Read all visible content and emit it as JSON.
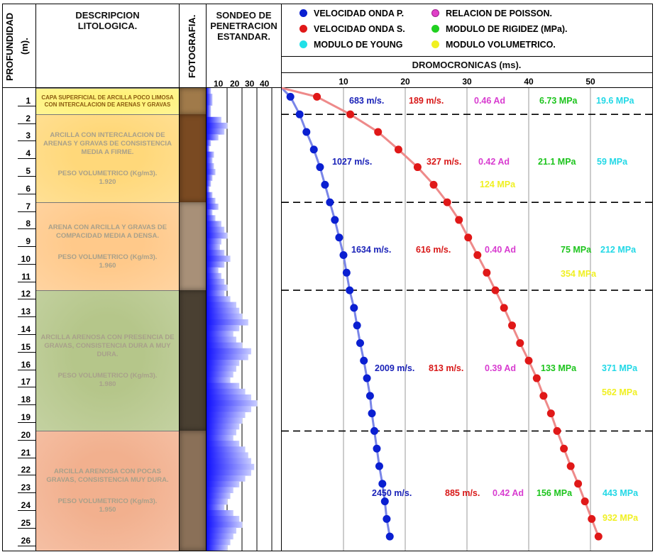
{
  "header": {
    "depth_title": "PROFUNDIDAD",
    "depth_unit": "(m).",
    "lith_title_1": "DESCRIPCION",
    "lith_title_2": "LITOLOGICA.",
    "photo_title": "FOTOGRAFIA.",
    "spt_title_1": "SONDEO DE",
    "spt_title_2": "PENETRACION",
    "spt_title_3": "ESTANDAR.",
    "spt_ticks": [
      "10",
      "20",
      "30",
      "40"
    ],
    "chart_title": "DROMOCRONICAS (ms)."
  },
  "legend": [
    {
      "label": "VELOCIDAD ONDA P.",
      "color": "#0a1fd1"
    },
    {
      "label": "RELACION DE POISSON.",
      "color": "#e040c8"
    },
    {
      "label": "VELOCIDAD ONDA S.",
      "color": "#e01818"
    },
    {
      "label": "MODULO DE RIGIDEZ (MPa).",
      "color": "#20d020"
    },
    {
      "label": "MODULO DE YOUNG",
      "color": "#20e0e8"
    },
    {
      "label": "MODULO VOLUMETRICO.",
      "color": "#f0f020"
    }
  ],
  "depths": [
    "1",
    "2",
    "3",
    "4",
    "5",
    "6",
    "7",
    "8",
    "9",
    "10",
    "11",
    "12",
    "13",
    "14",
    "15",
    "16",
    "17",
    "18",
    "19",
    "20",
    "21",
    "22",
    "23",
    "24",
    "25",
    "26"
  ],
  "layers": [
    {
      "text": "CAPA SUPERFICIAL DE ARCILLA POCO LIMOSA CON INTERCALACION DE ARENAS Y GRAVAS",
      "peso_label": "",
      "peso_value": "",
      "color": "#fff27a",
      "from": 0,
      "to": 1.5
    },
    {
      "text": "ARCILLA CON INTERCALACION DE ARENAS Y GRAVAS DE CONSISTENCIA MEDIA A FIRME.",
      "peso_label": "PESO VOLUMETRICO (Kg/m3).",
      "peso_value": "1.920",
      "color": "#ffd87a",
      "from": 1.5,
      "to": 6.5
    },
    {
      "text": "ARENA CON ARCILLA Y GRAVAS DE COMPACIDAD MEDIA A DENSA.",
      "peso_label": "PESO VOLUMETRICO (Kg/m3).",
      "peso_value": "1.960",
      "color": "#ffc98a",
      "from": 6.5,
      "to": 11.5
    },
    {
      "text": "ARCILLA ARENOSA CON PRESENCIA DE GRAVAS, CONSISTENCIA DURA A MUY DURA.",
      "peso_label": "PESO VOLUMETRICO (Kg/m3).",
      "peso_value": "1.980",
      "color": "#b5c68a",
      "from": 11.5,
      "to": 19.5
    },
    {
      "text": "ARCILLA ARENOSA CON POCAS GRAVAS, CONSISTENCIA MUY DURA.",
      "peso_label": "PESO VOLUMETRICO (Kg/m3).",
      "peso_value": "1.950",
      "color": "#f2b08e",
      "from": 19.5,
      "to": 26.3
    }
  ],
  "annotations": [
    {
      "vp": "683 m/s.",
      "vs": "189 m/s.",
      "poisson": "0.46 Ad",
      "rigidez": "6.73 MPa",
      "young": "19.6 MPa",
      "vol": ""
    },
    {
      "vp": "1027 m/s.",
      "vs": "327 m/s.",
      "poisson": "0.42 Ad",
      "rigidez": "21.1 MPa",
      "young": "59 MPa",
      "vol": "124 MPa"
    },
    {
      "vp": "1634 m/s.",
      "vs": "616 m/s.",
      "poisson": "0.40 Ad",
      "rigidez": "75 MPa",
      "young": "212 MPa",
      "vol": "354 MPa"
    },
    {
      "vp": "2009 m/s.",
      "vs": "813 m/s.",
      "poisson": "0.39 Ad",
      "rigidez": "133 MPa",
      "young": "371 MPa",
      "vol": "562 MPa"
    },
    {
      "vp": "2450 m/s.",
      "vs": "885 m/s.",
      "poisson": "0.42 Ad",
      "rigidez": "156 MPa",
      "young": "443 MPa",
      "vol": "932 MPa"
    }
  ],
  "chart_data": {
    "type": "scatter",
    "title": "DROMOCRONICAS (ms).",
    "xlabel": "",
    "ylabel": "PROFUNDIDAD (m).",
    "xlim": [
      0,
      60
    ],
    "ylim": [
      26.3,
      0
    ],
    "x_ticks": [
      10,
      20,
      30,
      40,
      50
    ],
    "layer_boundaries_depth": [
      1.5,
      6.5,
      11.5,
      19.5
    ],
    "series": [
      {
        "name": "VELOCIDAD ONDA P.",
        "color": "#0a1fd1",
        "x": [
          1.4,
          2.9,
          4.0,
          5.2,
          6.2,
          7.0,
          7.8,
          8.6,
          9.3,
          10.0,
          10.5,
          11.0,
          11.7,
          12.2,
          12.7,
          13.3,
          13.8,
          14.3,
          14.6,
          15.0,
          15.4,
          15.8,
          16.3,
          16.7,
          17.0,
          17.5
        ],
        "y": [
          0.5,
          1.5,
          2.5,
          3.5,
          4.5,
          5.5,
          6.5,
          7.5,
          8.5,
          9.5,
          10.5,
          11.5,
          12.5,
          13.5,
          14.5,
          15.5,
          16.5,
          17.5,
          18.5,
          19.5,
          20.5,
          21.5,
          22.5,
          23.5,
          24.5,
          25.5
        ]
      },
      {
        "name": "VELOCIDAD ONDA S.",
        "color": "#e01818",
        "x": [
          5.7,
          11.1,
          15.6,
          18.9,
          22.0,
          24.6,
          26.8,
          28.7,
          30.2,
          31.7,
          33.2,
          34.6,
          36.0,
          37.3,
          38.6,
          40.0,
          41.3,
          42.4,
          43.6,
          44.6,
          45.7,
          46.8,
          48.0,
          49.1,
          50.2,
          51.3
        ],
        "y": [
          0.5,
          1.5,
          2.5,
          3.5,
          4.5,
          5.5,
          6.5,
          7.5,
          8.5,
          9.5,
          10.5,
          11.5,
          12.5,
          13.5,
          14.5,
          15.5,
          16.5,
          17.5,
          18.5,
          19.5,
          20.5,
          21.5,
          22.5,
          23.5,
          24.5,
          25.5
        ]
      }
    ]
  },
  "spt_data": {
    "xlim": [
      0,
      50
    ],
    "values": [
      3,
      4,
      4,
      3,
      3,
      10,
      14,
      12,
      8,
      3,
      2,
      5,
      4,
      5,
      6,
      4,
      3,
      2,
      4,
      6,
      8,
      4,
      6,
      10,
      12,
      14,
      10,
      9,
      12,
      16,
      12,
      8,
      10,
      12,
      14,
      12,
      16,
      20,
      22,
      24,
      28,
      22,
      18,
      20,
      24,
      30,
      28,
      22,
      20,
      18,
      16,
      22,
      26,
      30,
      34,
      30,
      26,
      24,
      22,
      20,
      18,
      22,
      26,
      28,
      30,
      32,
      30,
      26,
      22,
      18,
      16,
      14,
      12,
      18,
      22,
      24,
      20,
      18,
      16,
      14
    ]
  }
}
